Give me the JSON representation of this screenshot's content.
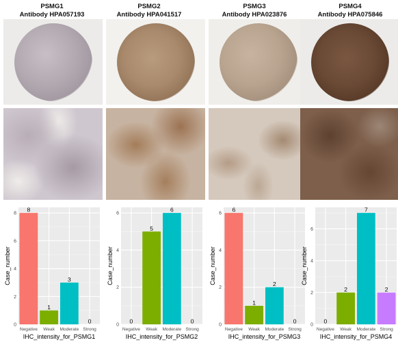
{
  "panels": [
    {
      "gene": "PSMG1",
      "antibody": "Antibody HPA057193"
    },
    {
      "gene": "PSMG2",
      "antibody": "Antibody HPA041517"
    },
    {
      "gene": "PSMG3",
      "antibody": "Antibody HPA023876"
    },
    {
      "gene": "PSMG4",
      "antibody": "Antibody HPA075846"
    }
  ],
  "chart_data": [
    {
      "type": "bar",
      "categories": [
        "Negative",
        "Weak",
        "Moderate",
        "Strong"
      ],
      "values": [
        8,
        1,
        3,
        0
      ],
      "xlabel": "IHC_intensity_for_PSMG1",
      "ylabel": "Case_number",
      "ylim": [
        0,
        8.4
      ],
      "yticks": [
        0,
        2,
        4,
        6,
        8
      ],
      "grid": true,
      "colors": [
        "#F8766D",
        "#7CAE00",
        "#00BFC4",
        "#C77CFF"
      ]
    },
    {
      "type": "bar",
      "categories": [
        "Negative",
        "Weak",
        "Moderate",
        "Strong"
      ],
      "values": [
        0,
        5,
        6,
        0
      ],
      "xlabel": "IHC_intensity_for_PSMG2",
      "ylabel": "Case_number",
      "ylim": [
        0,
        6.3
      ],
      "yticks": [
        0,
        2,
        4,
        6
      ],
      "grid": true,
      "colors": [
        "#F8766D",
        "#7CAE00",
        "#00BFC4",
        "#C77CFF"
      ]
    },
    {
      "type": "bar",
      "categories": [
        "Negative",
        "Weak",
        "Moderate",
        "Strong"
      ],
      "values": [
        6,
        1,
        2,
        0
      ],
      "xlabel": "IHC_intensity_for_PSMG3",
      "ylabel": "Case_number",
      "ylim": [
        0,
        6.3
      ],
      "yticks": [
        0,
        2,
        4,
        6
      ],
      "grid": true,
      "colors": [
        "#F8766D",
        "#7CAE00",
        "#00BFC4",
        "#C77CFF"
      ]
    },
    {
      "type": "bar",
      "categories": [
        "Negative",
        "Weak",
        "Moderate",
        "Strong"
      ],
      "values": [
        0,
        2,
        7,
        2
      ],
      "xlabel": "IHC_intensity_for_PSMG4",
      "ylabel": "Case_number",
      "ylim": [
        0,
        7.35
      ],
      "yticks": [
        0,
        2,
        4,
        6
      ],
      "grid": true,
      "colors": [
        "#F8766D",
        "#7CAE00",
        "#00BFC4",
        "#C77CFF"
      ]
    }
  ],
  "stain_colors": {
    "tma_backgrounds": [
      "#ecebe9",
      "#f2f1ee",
      "#efeeea",
      "#ecebe9"
    ],
    "tma_cores": [
      "#b2a9b1",
      "#a98a6c",
      "#b8a48f",
      "#6a4a35"
    ],
    "zoom_backgrounds": [
      "#cfc7cf",
      "#c7b3a1",
      "#d5c9bd",
      "#7d5f4b"
    ]
  }
}
